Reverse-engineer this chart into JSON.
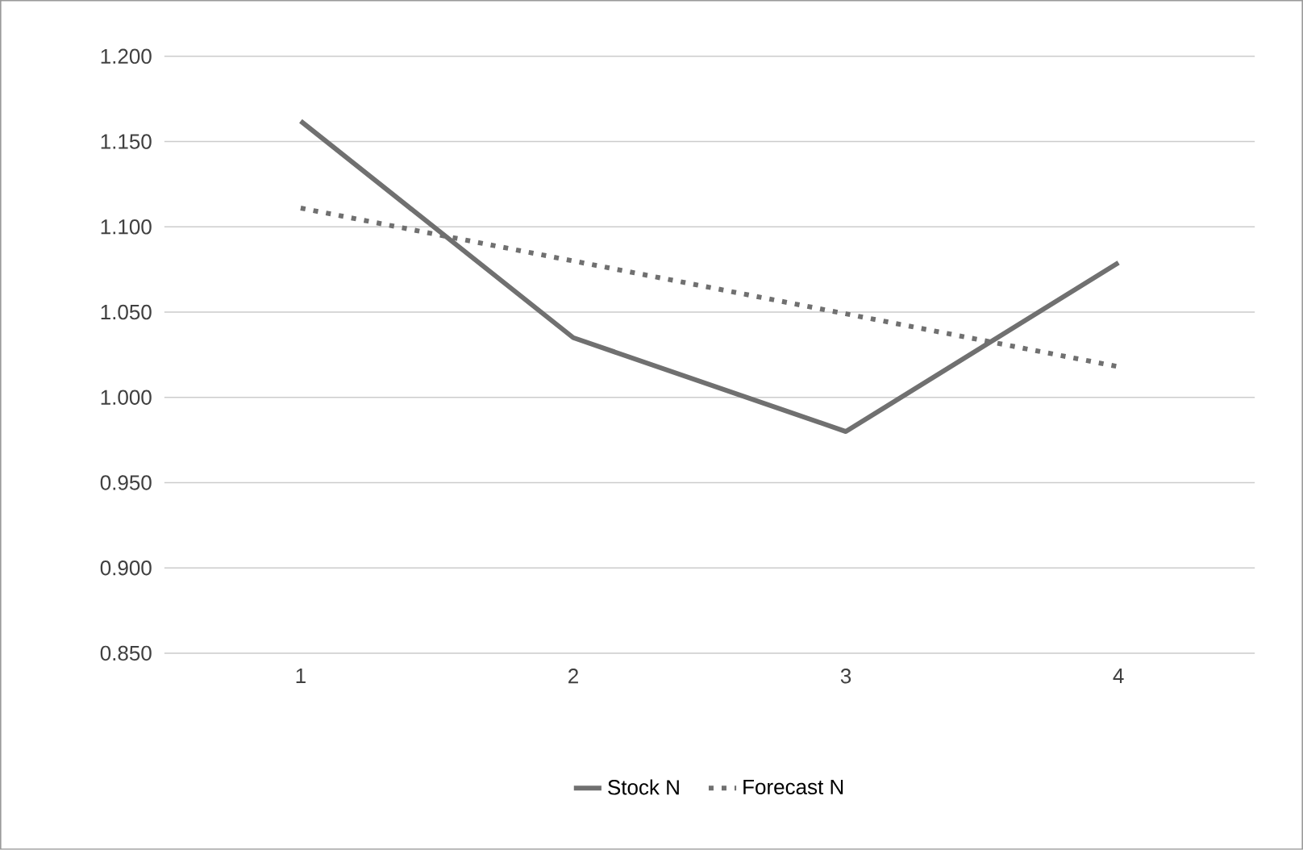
{
  "chart_data": {
    "type": "line",
    "categories": [
      "1",
      "2",
      "3",
      "4"
    ],
    "series": [
      {
        "name": "Stock N",
        "color": "#707070",
        "line_style": "solid",
        "values": [
          1.162,
          1.035,
          0.98,
          1.079
        ]
      },
      {
        "name": "Forecast N",
        "color": "#707070",
        "line_style": "dotted",
        "values": [
          1.111,
          1.08,
          1.049,
          1.018
        ]
      }
    ],
    "ylim": [
      0.85,
      1.2
    ],
    "yticks": [
      {
        "value": 0.85,
        "label": "0.850"
      },
      {
        "value": 0.9,
        "label": "0.900"
      },
      {
        "value": 0.95,
        "label": "0.950"
      },
      {
        "value": 1.0,
        "label": "1.000"
      },
      {
        "value": 1.05,
        "label": "1.050"
      },
      {
        "value": 1.1,
        "label": "1.100"
      },
      {
        "value": 1.15,
        "label": "1.150"
      },
      {
        "value": 1.2,
        "label": "1.200"
      }
    ],
    "grid": "y",
    "legend": "bottom",
    "marker": "none"
  }
}
